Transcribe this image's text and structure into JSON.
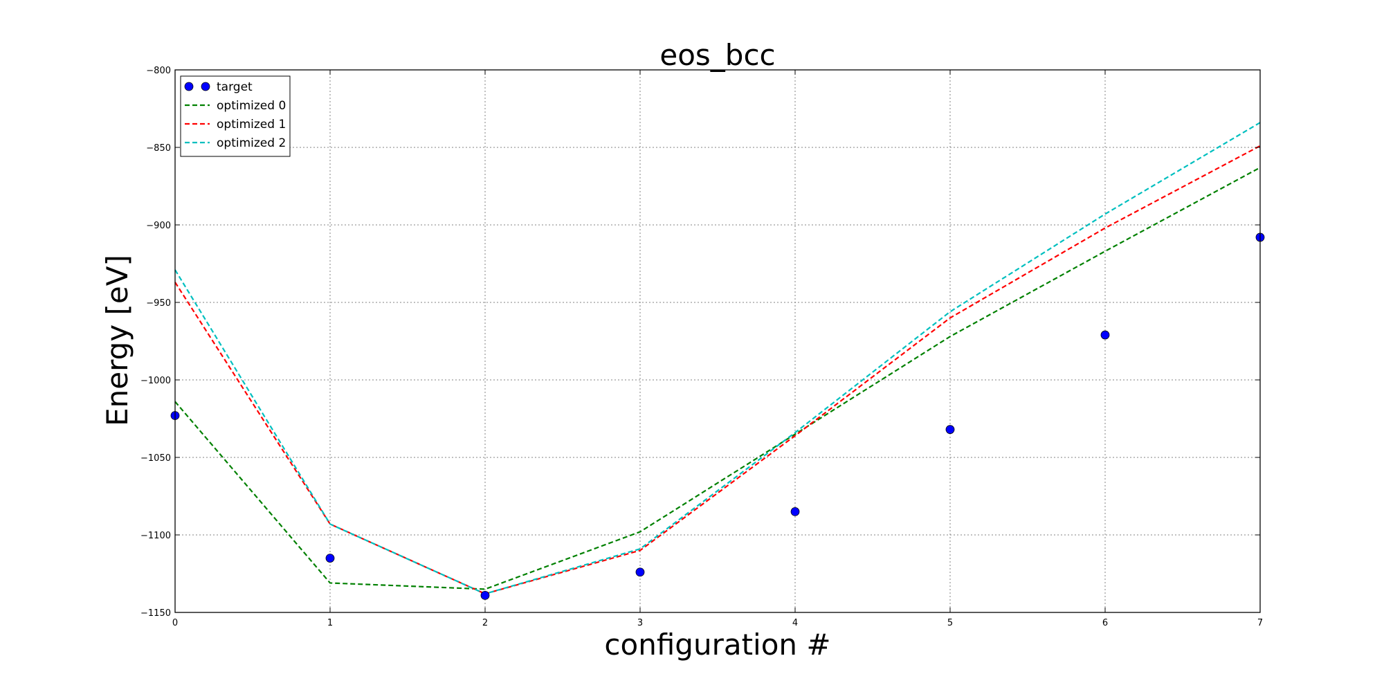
{
  "chart_data": {
    "type": "line",
    "title": "eos_bcc",
    "xlabel": "configuration #",
    "ylabel": "Energy [eV]",
    "xlim": [
      0,
      7
    ],
    "ylim": [
      -1150,
      -800
    ],
    "xticks": [
      0,
      1,
      2,
      3,
      4,
      5,
      6,
      7
    ],
    "yticks": [
      -800,
      -850,
      -900,
      -950,
      -1000,
      -1050,
      -1100,
      -1150
    ],
    "xtick_labels": [
      "0",
      "1",
      "2",
      "3",
      "4",
      "5",
      "6",
      "7"
    ],
    "ytick_labels": [
      "−800",
      "−850",
      "−900",
      "−950",
      "−1000",
      "−1050",
      "−1100",
      "−1150"
    ],
    "grid": true,
    "legend_position": "top-left",
    "x": [
      0,
      1,
      2,
      3,
      4,
      5,
      6,
      7
    ],
    "series": [
      {
        "name": "target",
        "style": "markers",
        "color": "#0000ff",
        "values": [
          -1023,
          -1115,
          -1139,
          -1124,
          -1085,
          -1032,
          -971,
          -908
        ]
      },
      {
        "name": "optimized 0",
        "style": "dashed",
        "color": "#008000",
        "values": [
          -1014,
          -1131,
          -1135,
          -1098,
          -1035,
          -972,
          -917,
          -863
        ]
      },
      {
        "name": "optimized 1",
        "style": "dashed",
        "color": "#ff0000",
        "values": [
          -937,
          -1093,
          -1138,
          -1110,
          -1036,
          -960,
          -902,
          -849
        ]
      },
      {
        "name": "optimized 2",
        "style": "dashed",
        "color": "#00bfbf",
        "values": [
          -929,
          -1093,
          -1138,
          -1109,
          -1034,
          -956,
          -893,
          -834
        ]
      }
    ]
  }
}
